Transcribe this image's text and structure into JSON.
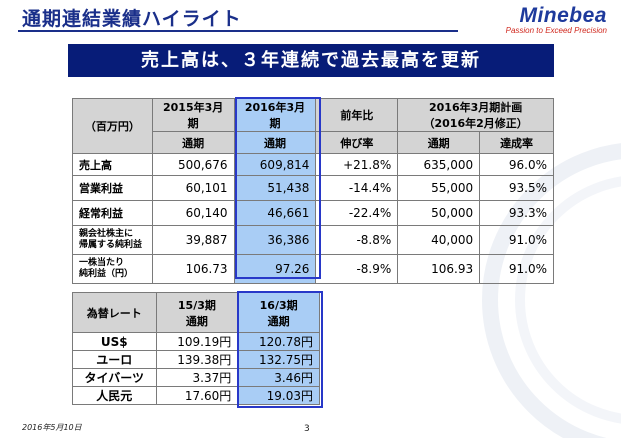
{
  "header": {
    "title": "通期連結業績ハイライト",
    "logo_main": "Minebea",
    "logo_tagline": "Passion to Exceed Precision"
  },
  "banner": "売上高は、３年連続で過去最高を更新",
  "results_table": {
    "unit_label": "（百万円）",
    "col_fy2015": "2015年3月期",
    "col_fy2016": "2016年3月期",
    "col_yoy": "前年比",
    "col_plan_line1": "2016年3月期計画",
    "col_plan_line2": "（2016年2月修正）",
    "sub_fy2015": "通期",
    "sub_fy2016": "通期",
    "sub_yoy": "伸び率",
    "sub_plan": "通期",
    "sub_rate": "達成率",
    "rows": [
      {
        "label": "売上高",
        "label2": "",
        "fy2015": "500,676",
        "fy2016": "609,814",
        "yoy": "+21.8%",
        "plan": "635,000",
        "rate": "96.0%"
      },
      {
        "label": "営業利益",
        "label2": "",
        "fy2015": "60,101",
        "fy2016": "51,438",
        "yoy": "-14.4%",
        "plan": "55,000",
        "rate": "93.5%"
      },
      {
        "label": "経常利益",
        "label2": "",
        "fy2015": "60,140",
        "fy2016": "46,661",
        "yoy": "-22.4%",
        "plan": "50,000",
        "rate": "93.3%"
      },
      {
        "label": "親会社株主に",
        "label2": "帰属する純利益",
        "fy2015": "39,887",
        "fy2016": "36,386",
        "yoy": "-8.8%",
        "plan": "40,000",
        "rate": "91.0%"
      },
      {
        "label": "一株当たり",
        "label2": "純利益（円）",
        "fy2015": "106.73",
        "fy2016": "97.26",
        "yoy": "-8.9%",
        "plan": "106.93",
        "rate": "91.0%"
      }
    ]
  },
  "fx_table": {
    "label": "為替レート",
    "col_15_line1": "15/3期",
    "col_15_line2": "通期",
    "col_16_line1": "16/3期",
    "col_16_line2": "通期",
    "rows": [
      {
        "label": "US$",
        "fy15": "109.19円",
        "fy16": "120.78円"
      },
      {
        "label": "ユーロ",
        "fy15": "139.38円",
        "fy16": "132.75円"
      },
      {
        "label": "タイバーツ",
        "fy15": "3.37円",
        "fy16": "3.46円"
      },
      {
        "label": "人民元",
        "fy15": "17.60円",
        "fy16": "19.03円"
      }
    ]
  },
  "footer": {
    "date": "2016年5月10日",
    "page_number": "3"
  }
}
